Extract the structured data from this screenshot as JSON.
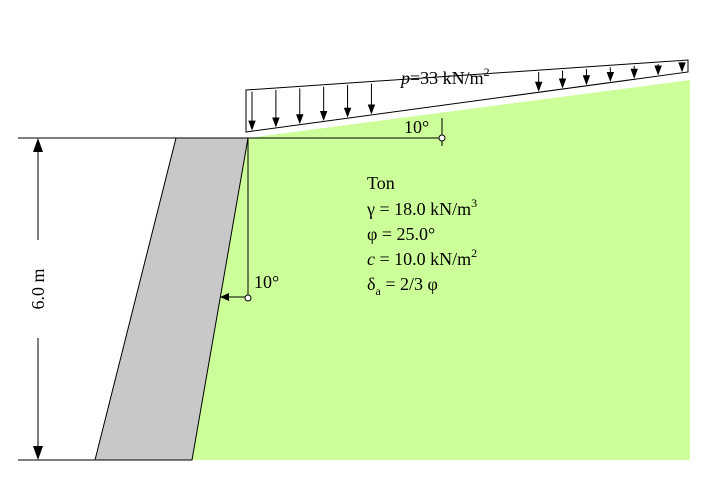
{
  "load": {
    "p_symbol": "p",
    "p_value": "=33 kN/m",
    "p_exp": "2"
  },
  "angles": {
    "slope": "10°",
    "wall": "10°"
  },
  "dimension": {
    "height": "6.0 m"
  },
  "soil": {
    "name": "Ton",
    "gamma_sym": "γ",
    "gamma_val": " = 18.0 kN/m",
    "gamma_exp": "3",
    "phi_line": "φ = 25.0°",
    "c_sym": "c",
    "c_val": " =  10.0 kN/m",
    "c_exp": "2",
    "delta_sym": "δ",
    "delta_sub": "a",
    "delta_val": " = 2/3 φ"
  },
  "colors": {
    "soil": "#ccff99",
    "wall": "#c8c8c8"
  }
}
